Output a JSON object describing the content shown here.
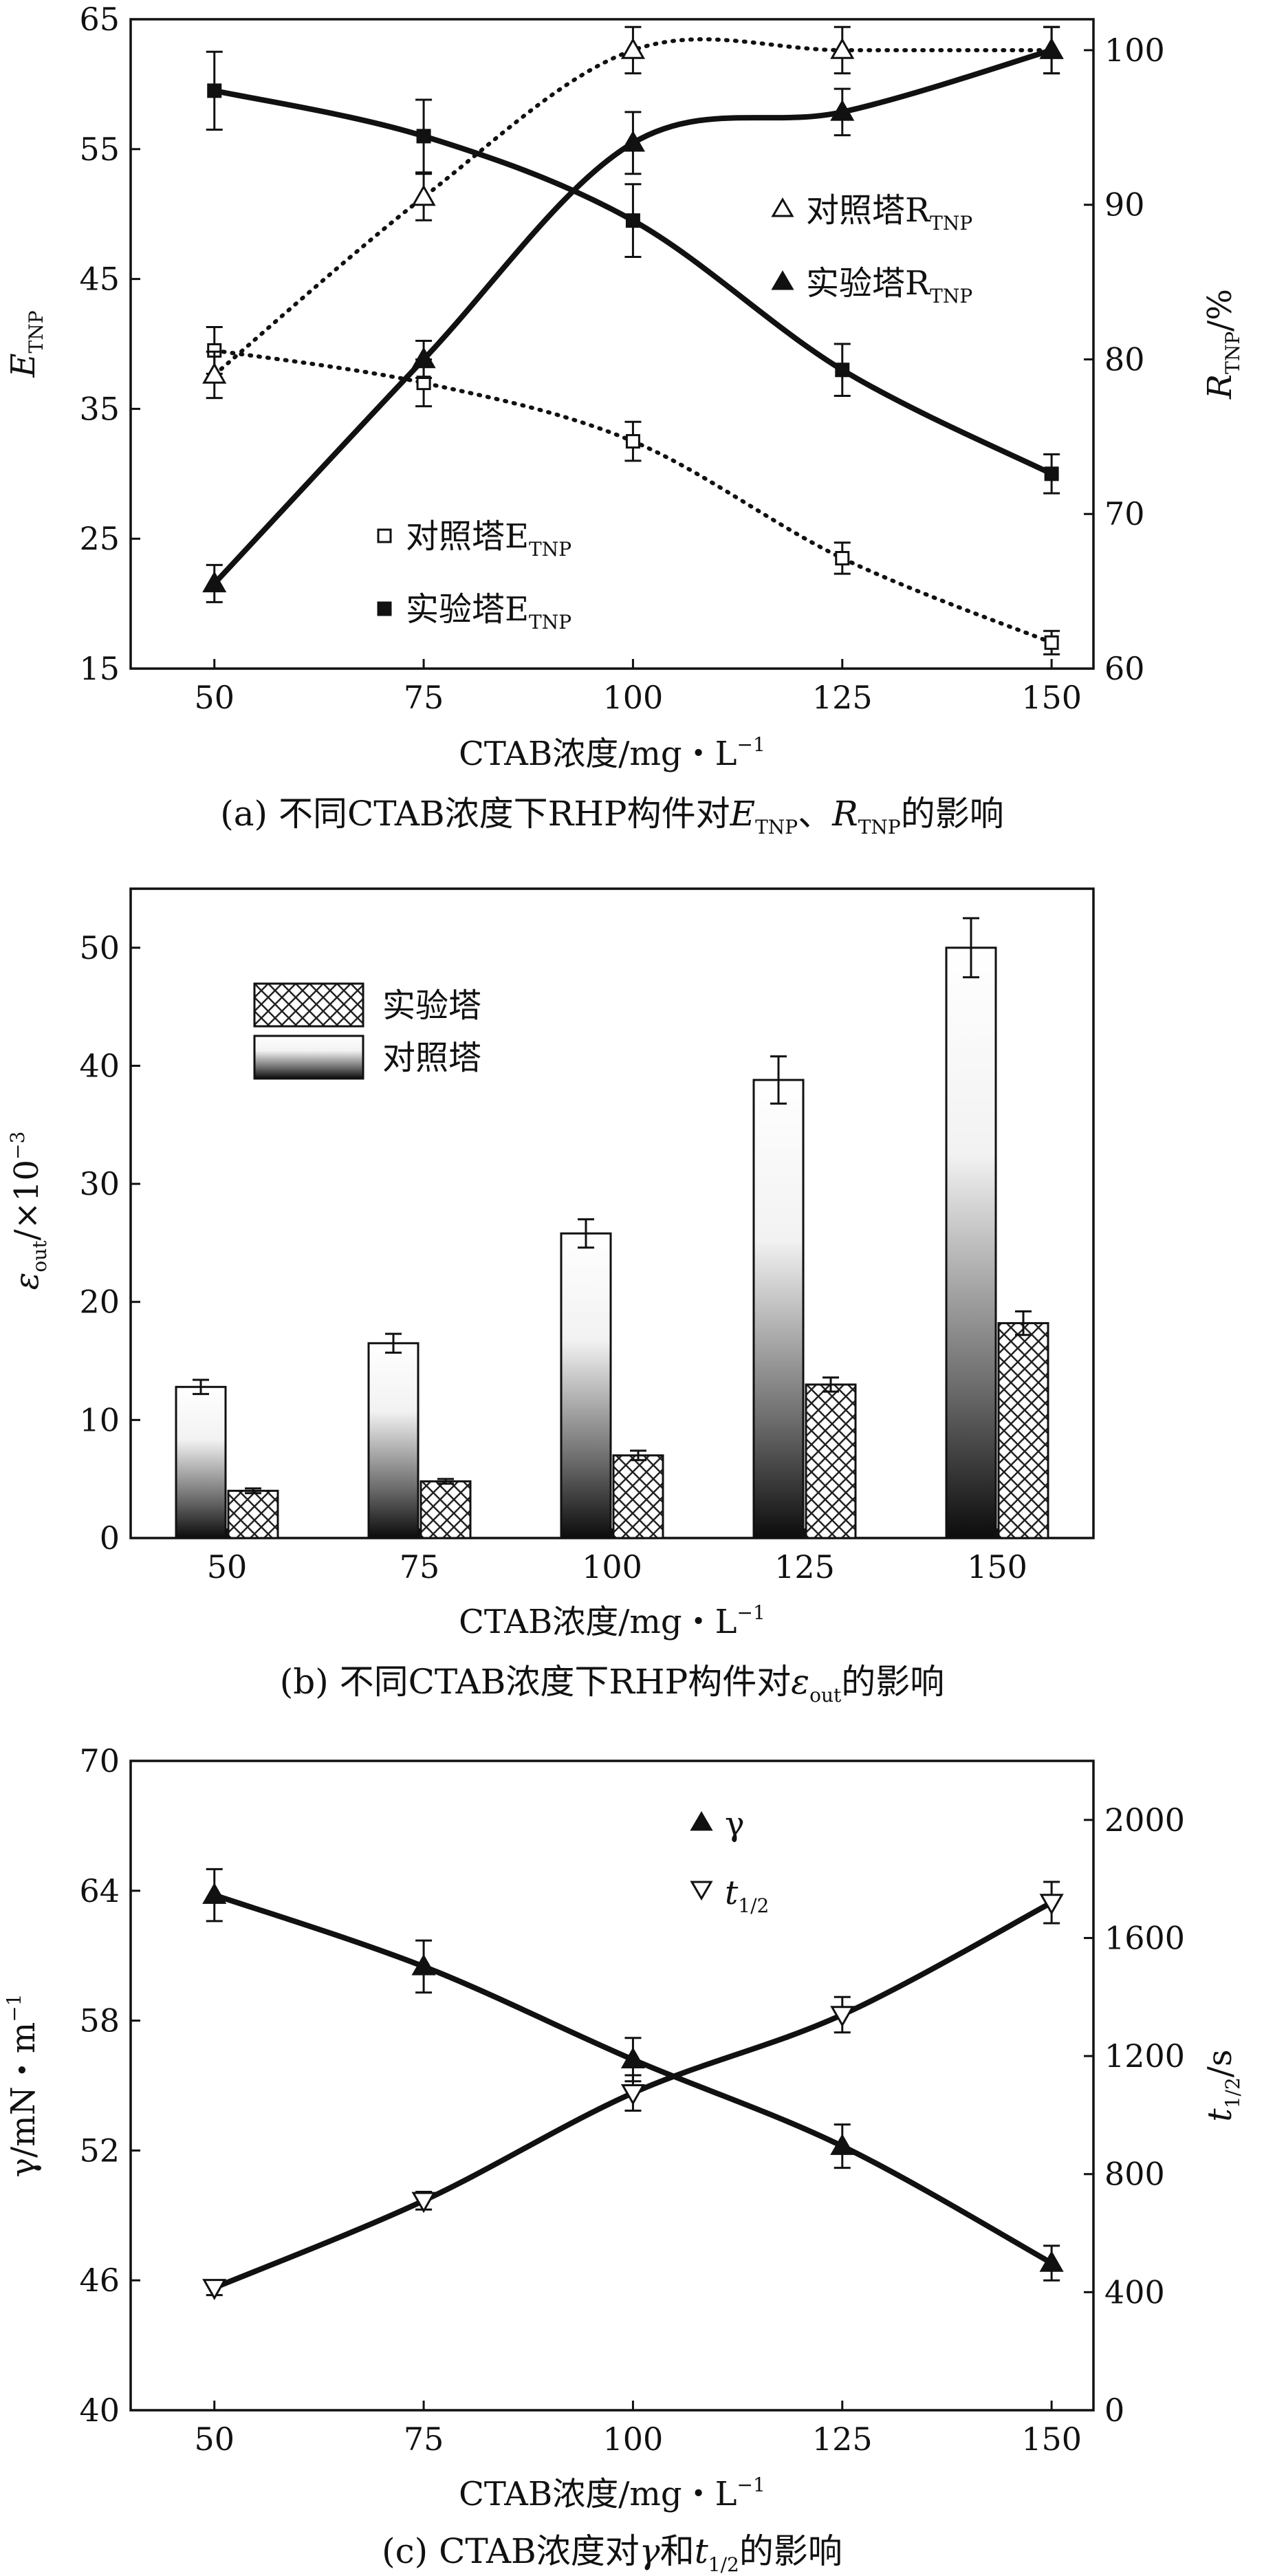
{
  "chart_data": [
    {
      "id": "a",
      "type": "line",
      "caption_parts": {
        "pre": "(a) 不同CTAB浓度下RHP构件对",
        "E": "E",
        "tnp": "TNP",
        "sep": "、",
        "R": "R",
        "post": "的影响"
      },
      "xlabel": "CTAB浓度/mg・L",
      "xlabel_sup": "−1",
      "ylabel_left": {
        "main": "E",
        "sub": "TNP"
      },
      "ylabel_right": {
        "main": "R",
        "sub": "TNP",
        "suffix": "/%"
      },
      "x": [
        50,
        75,
        100,
        125,
        150
      ],
      "xticks": [
        "50",
        "75",
        "100",
        "125",
        "150"
      ],
      "xlim": [
        40,
        155
      ],
      "ylim_left": [
        15,
        65
      ],
      "yticks_left": [
        "15",
        "25",
        "35",
        "45",
        "55",
        "65"
      ],
      "ylim_right": [
        60,
        102
      ],
      "yticks_right": [
        "60",
        "70",
        "80",
        "90",
        "100"
      ],
      "series": [
        {
          "key": "ctrlE",
          "name": "对照塔E",
          "sub": "TNP",
          "axis": "left",
          "marker": "square-open",
          "line": "dotted",
          "values": [
            39.5,
            37,
            32.5,
            23.5,
            17
          ],
          "err": [
            1.8,
            1.8,
            1.5,
            1.2,
            0.9
          ]
        },
        {
          "key": "expE",
          "name": "实验塔E",
          "sub": "TNP",
          "axis": "left",
          "marker": "square-filled",
          "line": "solid",
          "values": [
            59.5,
            56,
            49.5,
            38,
            30
          ],
          "err": [
            3.0,
            2.8,
            2.8,
            2.0,
            1.5
          ]
        },
        {
          "key": "ctrlR",
          "name": "对照塔R",
          "sub": "TNP",
          "axis": "right",
          "marker": "triangle-open",
          "line": "dotted",
          "values": [
            79,
            90.5,
            100,
            100,
            100
          ],
          "err": [
            1.5,
            1.5,
            1.5,
            1.5,
            1.5
          ]
        },
        {
          "key": "expR",
          "name": "实验塔R",
          "sub": "TNP",
          "axis": "right",
          "marker": "triangle-filled",
          "line": "solid",
          "values": [
            65.5,
            80,
            94,
            96,
            100
          ],
          "err": [
            1.2,
            1.2,
            2.0,
            1.5,
            1.5
          ]
        }
      ]
    },
    {
      "id": "b",
      "type": "bar",
      "caption_parts": {
        "pre": "(b) 不同CTAB浓度下RHP构件对",
        "eps": "ε",
        "out": "out",
        "post": "的影响"
      },
      "xlabel": "CTAB浓度/mg・L",
      "xlabel_sup": "−1",
      "ylabel": {
        "main": "ε",
        "sub": "out",
        "mid": "/×10",
        "sup": "−3"
      },
      "categories": [
        "50",
        "75",
        "100",
        "125",
        "150"
      ],
      "ylim": [
        0,
        55
      ],
      "yticks": [
        "0",
        "10",
        "20",
        "30",
        "40",
        "50"
      ],
      "series": [
        {
          "key": "ctrl",
          "name": "对照塔",
          "pattern": "gradient",
          "values": [
            12.8,
            16.5,
            25.8,
            38.8,
            50
          ],
          "err": [
            0.6,
            0.8,
            1.2,
            2.0,
            2.5
          ]
        },
        {
          "key": "exp",
          "name": "实验塔",
          "pattern": "crosshatch",
          "values": [
            4.0,
            4.8,
            7.0,
            13.0,
            18.2
          ],
          "err": [
            0.2,
            0.2,
            0.4,
            0.6,
            1.0
          ]
        }
      ],
      "legend_order": [
        "exp",
        "ctrl"
      ]
    },
    {
      "id": "c",
      "type": "line",
      "caption_parts": {
        "pre": "(c) CTAB浓度对",
        "gamma": "γ",
        "and": "和",
        "t": "t",
        "half": "1/2",
        "post": "的影响"
      },
      "xlabel": "CTAB浓度/mg・L",
      "xlabel_sup": "−1",
      "ylabel_left": {
        "main": "γ/mN・m",
        "sup": "−1"
      },
      "ylabel_right": {
        "main": "t",
        "sub": "1/2",
        "suffix": "/s"
      },
      "x": [
        50,
        75,
        100,
        125,
        150
      ],
      "xticks": [
        "50",
        "75",
        "100",
        "125",
        "150"
      ],
      "xlim": [
        40,
        155
      ],
      "ylim_left": [
        40,
        70
      ],
      "yticks_left": [
        "40",
        "46",
        "52",
        "58",
        "64",
        "70"
      ],
      "ylim_right": [
        0,
        2200
      ],
      "yticks_right": [
        "0",
        "400",
        "800",
        "1200",
        "1600",
        "2000"
      ],
      "series": [
        {
          "key": "gamma",
          "name": "γ",
          "sub": "",
          "axis": "left",
          "marker": "triangle-filled",
          "values": [
            63.8,
            60.5,
            56.2,
            52.2,
            46.8
          ],
          "err": [
            1.2,
            1.2,
            1.0,
            1.0,
            0.8
          ]
        },
        {
          "key": "thalf",
          "name": "t",
          "sub": "1/2",
          "axis": "right",
          "marker": "triangle-down-open",
          "values": [
            415,
            710,
            1075,
            1340,
            1720
          ],
          "err": [
            25,
            30,
            60,
            60,
            70
          ]
        }
      ]
    }
  ]
}
